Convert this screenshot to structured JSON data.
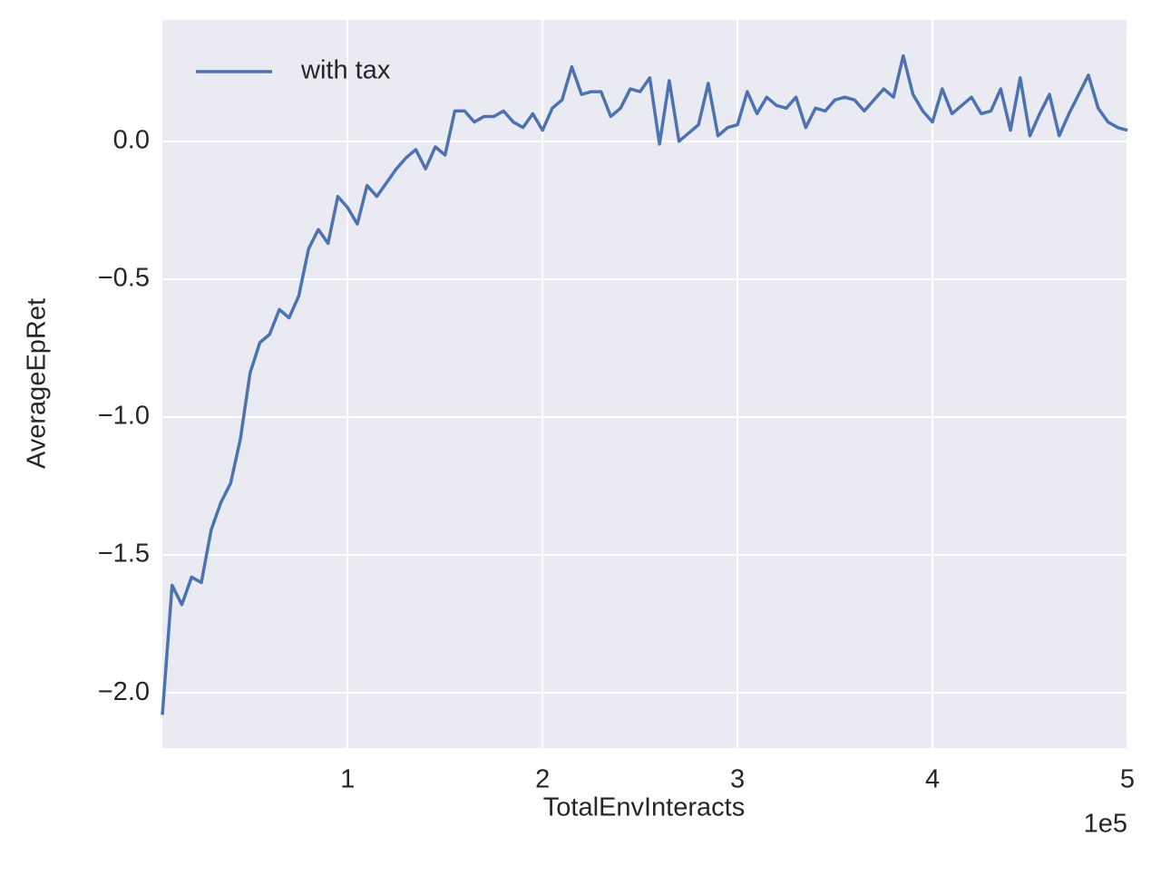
{
  "chart_data": {
    "type": "line",
    "xlabel": "TotalEnvInteracts",
    "ylabel": "AverageEpRet",
    "x_offset_label": "1e5",
    "x": [
      0.05,
      0.1,
      0.15,
      0.2,
      0.25,
      0.3,
      0.35,
      0.4,
      0.45,
      0.5,
      0.55,
      0.6,
      0.65,
      0.7,
      0.75,
      0.8,
      0.85,
      0.9,
      0.95,
      1.0,
      1.05,
      1.1,
      1.15,
      1.2,
      1.25,
      1.3,
      1.35,
      1.4,
      1.45,
      1.5,
      1.55,
      1.6,
      1.65,
      1.7,
      1.75,
      1.8,
      1.85,
      1.9,
      1.95,
      2.0,
      2.05,
      2.1,
      2.15,
      2.2,
      2.25,
      2.3,
      2.35,
      2.4,
      2.45,
      2.5,
      2.55,
      2.6,
      2.65,
      2.7,
      2.75,
      2.8,
      2.85,
      2.9,
      2.95,
      3.0,
      3.05,
      3.1,
      3.15,
      3.2,
      3.25,
      3.3,
      3.35,
      3.4,
      3.45,
      3.5,
      3.55,
      3.6,
      3.65,
      3.7,
      3.75,
      3.8,
      3.85,
      3.9,
      3.95,
      4.0,
      4.05,
      4.1,
      4.15,
      4.2,
      4.25,
      4.3,
      4.35,
      4.4,
      4.45,
      4.5,
      4.55,
      4.6,
      4.65,
      4.7,
      4.75,
      4.8,
      4.85,
      4.9,
      4.95,
      5.0
    ],
    "series": [
      {
        "name": "with tax",
        "color": "#4c72b0",
        "values": [
          -2.08,
          -1.61,
          -1.68,
          -1.58,
          -1.6,
          -1.41,
          -1.31,
          -1.24,
          -1.08,
          -0.84,
          -0.73,
          -0.7,
          -0.61,
          -0.64,
          -0.56,
          -0.39,
          -0.32,
          -0.37,
          -0.2,
          -0.24,
          -0.3,
          -0.16,
          -0.2,
          -0.15,
          -0.1,
          -0.06,
          -0.03,
          -0.1,
          -0.02,
          -0.05,
          0.11,
          0.11,
          0.07,
          0.09,
          0.09,
          0.11,
          0.07,
          0.05,
          0.1,
          0.04,
          0.12,
          0.15,
          0.27,
          0.17,
          0.18,
          0.18,
          0.09,
          0.12,
          0.19,
          0.18,
          0.23,
          -0.01,
          0.22,
          0.0,
          0.03,
          0.06,
          0.21,
          0.02,
          0.05,
          0.06,
          0.18,
          0.1,
          0.16,
          0.13,
          0.12,
          0.16,
          0.05,
          0.12,
          0.11,
          0.15,
          0.16,
          0.15,
          0.11,
          0.15,
          0.19,
          0.16,
          0.31,
          0.17,
          0.11,
          0.07,
          0.19,
          0.1,
          0.13,
          0.16,
          0.1,
          0.11,
          0.19,
          0.04,
          0.23,
          0.02,
          0.1,
          0.17,
          0.02,
          0.1,
          0.17,
          0.24,
          0.12,
          0.07,
          0.05,
          0.04
        ]
      }
    ],
    "xlim": [
      0.05,
      5.0
    ],
    "xticks": [
      1,
      2,
      3,
      4,
      5
    ],
    "ylim": [
      -2.2,
      0.44
    ],
    "yticks": [
      {
        "value": -2.0,
        "label": "−2.0"
      },
      {
        "value": -1.5,
        "label": "−1.5"
      },
      {
        "value": -1.0,
        "label": "−1.0"
      },
      {
        "value": -0.5,
        "label": "−0.5"
      },
      {
        "value": 0.0,
        "label": "0.0"
      }
    ],
    "grid": true,
    "legend": "upper left",
    "background": "#eaeaf2"
  }
}
